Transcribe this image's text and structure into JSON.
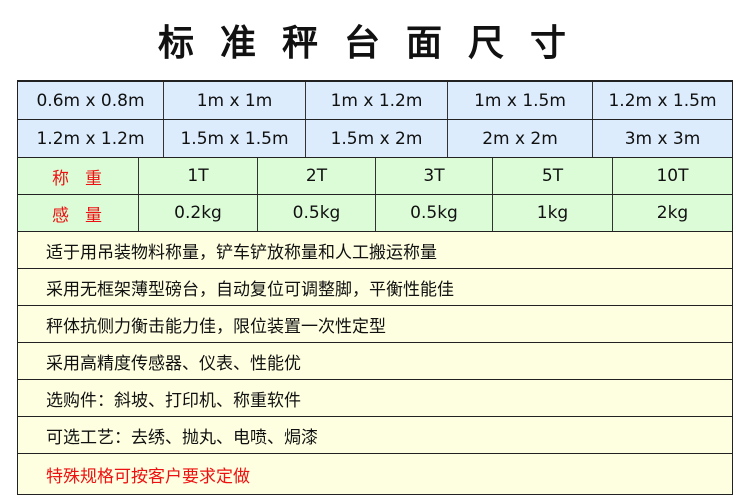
{
  "title": "标准秤台面尺寸",
  "sizes_row1": [
    "0.6m x 0.8m",
    "1m x 1m",
    "1m x 1.2m",
    "1m x 1.5m",
    "1.2m x 1.5m"
  ],
  "sizes_row2": [
    "1.2m x 1.2m",
    "1.5m x 1.5m",
    "1.5m x 2m",
    "2m x 2m",
    "3m x 3m"
  ],
  "capacity": {
    "label": "称重",
    "values": [
      "1T",
      "2T",
      "3T",
      "5T",
      "10T"
    ]
  },
  "sensitivity": {
    "label": "感量",
    "values": [
      "0.2kg",
      "0.5kg",
      "0.5kg",
      "1kg",
      "2kg"
    ]
  },
  "features": [
    "适于用吊装物料称量，铲车铲放称量和人工搬运称量",
    "采用无框架薄型磅台，自动复位可调整脚，平衡性能佳",
    "秤体抗侧力衡击能力佳，限位装置一次性定型",
    "采用高精度传感器、仪表、性能优",
    "选购件：斜坡、打印机、称重软件",
    "可选工艺：去绣、抛丸、电喷、焗漆"
  ],
  "note": "特殊规格可按客户要求定做",
  "colors": {
    "size_bg": "#dcecfc",
    "spec_bg": "#dcfcd8",
    "feature_bg": "#fefee0",
    "accent_red": "#ee1111"
  }
}
